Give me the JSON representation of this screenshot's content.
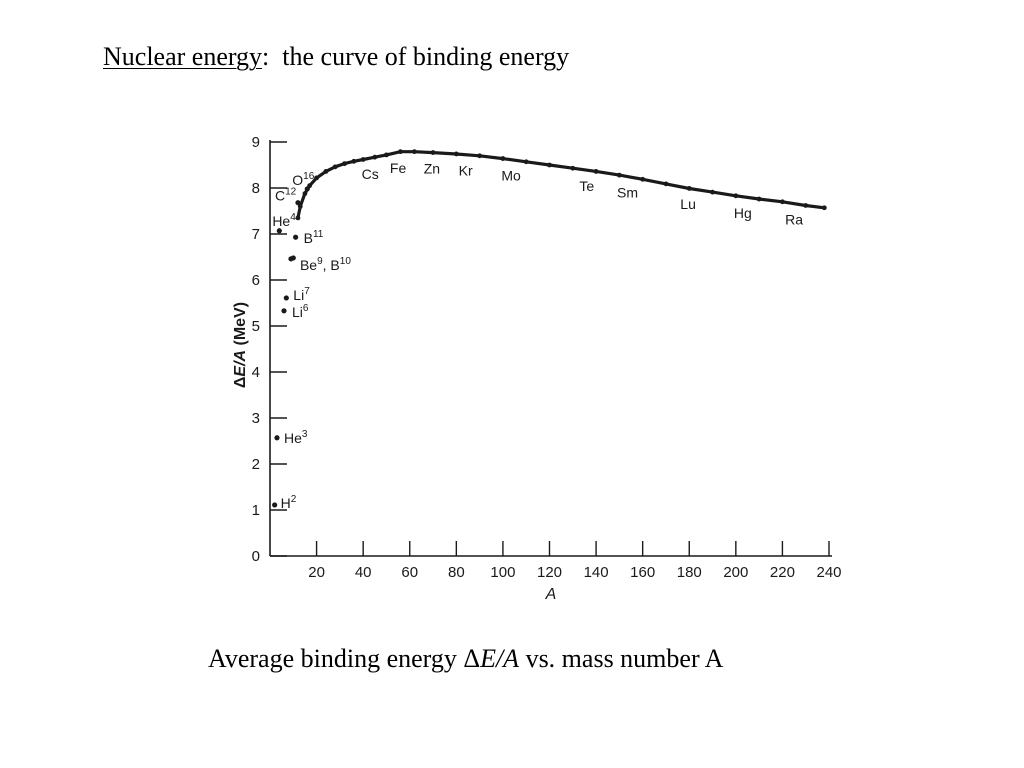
{
  "title": {
    "underlined": "Nuclear energy",
    "rest": ":  the curve of binding energy"
  },
  "caption": {
    "before": "Average binding energy Δ",
    "italic": "E/A",
    "after": " vs. mass number A"
  },
  "colors": {
    "ink": "#1a1a1a",
    "background": "#ffffff"
  },
  "chart_data": {
    "type": "line",
    "xlabel": "A",
    "ylabel": "ΔE/A (MeV)",
    "xlim": [
      0,
      240
    ],
    "ylim": [
      0,
      9
    ],
    "xticks": [
      20,
      40,
      60,
      80,
      100,
      120,
      140,
      160,
      180,
      200,
      220,
      240
    ],
    "yticks": [
      0,
      1,
      2,
      3,
      4,
      5,
      6,
      7,
      8,
      9
    ],
    "grid": false,
    "curve": {
      "x": [
        12,
        13,
        15,
        17,
        20,
        24,
        28,
        32,
        36,
        40,
        45,
        50,
        56,
        62,
        70,
        80,
        90,
        100,
        110,
        120,
        130,
        140,
        150,
        160,
        170,
        180,
        190,
        200,
        210,
        220,
        230,
        238
      ],
      "y": [
        7.35,
        7.6,
        7.88,
        8.05,
        8.22,
        8.36,
        8.46,
        8.53,
        8.58,
        8.62,
        8.67,
        8.72,
        8.79,
        8.79,
        8.77,
        8.74,
        8.7,
        8.64,
        8.57,
        8.5,
        8.43,
        8.36,
        8.28,
        8.19,
        8.09,
        7.99,
        7.91,
        7.83,
        7.76,
        7.7,
        7.62,
        7.57
      ]
    },
    "isotopes": [
      {
        "symbol": "H",
        "mass": "2",
        "A": 2,
        "value": 1.11
      },
      {
        "symbol": "He",
        "mass": "3",
        "A": 3,
        "value": 2.57
      },
      {
        "symbol": "He",
        "mass": "4",
        "A": 4,
        "value": 7.07
      },
      {
        "symbol": "Li",
        "mass": "6",
        "A": 6,
        "value": 5.33
      },
      {
        "symbol": "Li",
        "mass": "7",
        "A": 7,
        "value": 5.61
      },
      {
        "symbol": "Be",
        "mass": "9",
        "A": 9,
        "value": 6.46
      },
      {
        "symbol": "B",
        "mass": "10",
        "A": 10,
        "value": 6.48,
        "prefix": ", "
      },
      {
        "symbol": "B",
        "mass": "11",
        "A": 11,
        "value": 6.93
      },
      {
        "symbol": "C",
        "mass": "12",
        "A": 12,
        "value": 7.68
      },
      {
        "symbol": "O",
        "mass": "16",
        "A": 16,
        "value": 7.98
      }
    ],
    "element_labels": [
      {
        "text": "Cs",
        "A": 43
      },
      {
        "text": "Fe",
        "A": 55
      },
      {
        "text": "Zn",
        "A": 69.5
      },
      {
        "text": "Kr",
        "A": 84
      },
      {
        "text": "Mo",
        "A": 103.5
      },
      {
        "text": "Te",
        "A": 136
      },
      {
        "text": "Sm",
        "A": 153.5
      },
      {
        "text": "Lu",
        "A": 179.5
      },
      {
        "text": "Hg",
        "A": 203
      },
      {
        "text": "Ra",
        "A": 225
      }
    ]
  }
}
